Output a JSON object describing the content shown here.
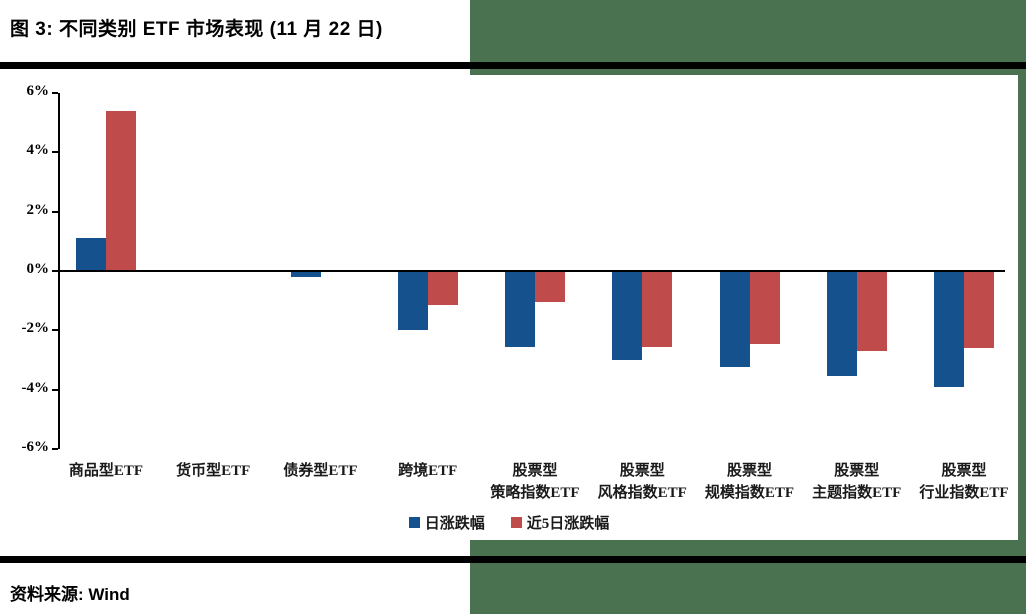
{
  "header": {
    "title": "图 3:  不同类别 ETF 市场表现  (11 月 22 日)"
  },
  "footer": {
    "source_label": "资料来源:  Wind"
  },
  "colors": {
    "daily_series": "#15518d",
    "five_day_series": "#bf4c4b",
    "page_accent_green": "#4a7150",
    "axis": "#000000"
  },
  "legend": [
    {
      "label": "日涨跌幅",
      "color": "#15518d"
    },
    {
      "label": "近5日涨跌幅",
      "color": "#bf4c4b"
    }
  ],
  "chart_data": {
    "type": "bar",
    "title": "不同类别 ETF 市场表现 (11 月 22 日)",
    "categories": [
      [
        "商品型ETF",
        ""
      ],
      [
        "货币型ETF",
        ""
      ],
      [
        "债券型ETF",
        ""
      ],
      [
        "跨境ETF",
        ""
      ],
      [
        "股票型",
        "策略指数ETF"
      ],
      [
        "股票型",
        "风格指数ETF"
      ],
      [
        "股票型",
        "规模指数ETF"
      ],
      [
        "股票型",
        "主题指数ETF"
      ],
      [
        "股票型",
        "行业指数ETF"
      ]
    ],
    "series": [
      {
        "name": "日涨跌幅",
        "color": "#15518d",
        "values": [
          1.1,
          0,
          -0.2,
          -2.0,
          -2.55,
          -3.0,
          -3.25,
          -3.55,
          -3.9
        ]
      },
      {
        "name": "近5日涨跌幅",
        "color": "#bf4c4b",
        "values": [
          5.4,
          0,
          0.05,
          -1.15,
          -1.05,
          -2.55,
          -2.45,
          -2.7,
          -2.6
        ]
      }
    ],
    "ylabel": "",
    "xlabel": "",
    "unit": "%",
    "ylim": [
      -6,
      6
    ],
    "yticks": [
      "6%",
      "4%",
      "2%",
      "0%",
      "-2%",
      "-4%",
      "-6%"
    ],
    "grid": false,
    "legend_position": "bottom"
  }
}
